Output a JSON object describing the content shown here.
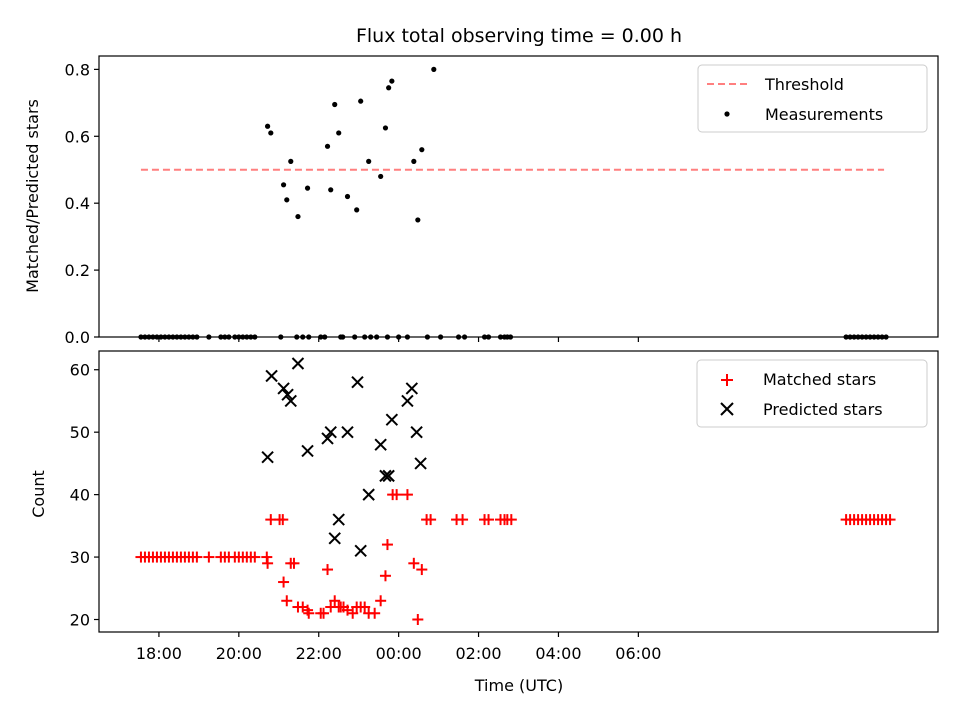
{
  "chart_data": [
    {
      "type": "scatter",
      "title": "Flux total observing time = 0.00 h",
      "xlabel": "",
      "ylabel": "Matched/Predicted stars",
      "xlim": [
        -1.5,
        19.5
      ],
      "ylim": [
        0,
        0.84
      ],
      "x_ticks_hours": [
        0,
        2,
        4,
        6,
        8,
        10,
        12
      ],
      "y_ticks": [
        "0.0",
        "0.2",
        "0.4",
        "0.6",
        "0.8"
      ],
      "y_tick_values": [
        0,
        0.2,
        0.4,
        0.6,
        0.8
      ],
      "threshold": {
        "name": "Threshold",
        "value": 0.5,
        "x_range": [
          -0.45,
          18.15
        ],
        "color": "#ff7f7f"
      },
      "legend": [
        "Threshold",
        "Measurements"
      ],
      "series": [
        {
          "name": "Measurements",
          "color": "#000000",
          "points": [
            [
              -0.45,
              0
            ],
            [
              -0.35,
              0
            ],
            [
              -0.25,
              0
            ],
            [
              -0.15,
              0
            ],
            [
              -0.05,
              0
            ],
            [
              0.05,
              0
            ],
            [
              0.15,
              0
            ],
            [
              0.25,
              0
            ],
            [
              0.35,
              0
            ],
            [
              0.45,
              0
            ],
            [
              0.55,
              0
            ],
            [
              0.65,
              0
            ],
            [
              0.75,
              0
            ],
            [
              0.85,
              0
            ],
            [
              0.95,
              0
            ],
            [
              1.25,
              0
            ],
            [
              1.55,
              0
            ],
            [
              1.65,
              0
            ],
            [
              1.75,
              0
            ],
            [
              1.9,
              0
            ],
            [
              2.0,
              0
            ],
            [
              2.1,
              0
            ],
            [
              2.2,
              0
            ],
            [
              2.3,
              0
            ],
            [
              2.4,
              0
            ],
            [
              2.72,
              0.63
            ],
            [
              2.8,
              0.61
            ],
            [
              3.05,
              0
            ],
            [
              3.12,
              0.455
            ],
            [
              3.2,
              0.41
            ],
            [
              3.3,
              0.525
            ],
            [
              3.45,
              0
            ],
            [
              3.48,
              0.36
            ],
            [
              3.6,
              0
            ],
            [
              3.72,
              0.445
            ],
            [
              3.75,
              0
            ],
            [
              4.05,
              0
            ],
            [
              4.15,
              0
            ],
            [
              4.22,
              0.57
            ],
            [
              4.3,
              0.44
            ],
            [
              4.4,
              0.695
            ],
            [
              4.5,
              0.61
            ],
            [
              4.55,
              0
            ],
            [
              4.6,
              0
            ],
            [
              4.72,
              0.42
            ],
            [
              4.9,
              0
            ],
            [
              4.95,
              0.38
            ],
            [
              5.05,
              0.705
            ],
            [
              5.15,
              0
            ],
            [
              5.25,
              0.525
            ],
            [
              5.3,
              0
            ],
            [
              5.45,
              0
            ],
            [
              5.55,
              0.48
            ],
            [
              5.67,
              0.625
            ],
            [
              5.72,
              0
            ],
            [
              5.75,
              0.745
            ],
            [
              5.83,
              0.765
            ],
            [
              6.0,
              0
            ],
            [
              6.22,
              0
            ],
            [
              6.38,
              0.525
            ],
            [
              6.48,
              0.35
            ],
            [
              6.58,
              0.56
            ],
            [
              6.72,
              0
            ],
            [
              6.88,
              0.8
            ],
            [
              7.05,
              0
            ],
            [
              7.5,
              0
            ],
            [
              7.65,
              0
            ],
            [
              8.15,
              0
            ],
            [
              8.25,
              0
            ],
            [
              8.55,
              0
            ],
            [
              8.65,
              0
            ],
            [
              8.72,
              0
            ],
            [
              8.8,
              0
            ],
            [
              17.2,
              0
            ],
            [
              17.3,
              0
            ],
            [
              17.4,
              0
            ],
            [
              17.5,
              0
            ],
            [
              17.6,
              0
            ],
            [
              17.7,
              0
            ],
            [
              17.8,
              0
            ],
            [
              17.9,
              0
            ],
            [
              18.0,
              0
            ],
            [
              18.1,
              0
            ],
            [
              18.2,
              0
            ]
          ]
        }
      ]
    },
    {
      "type": "scatter",
      "title": "",
      "xlabel": "Time (UTC)",
      "ylabel": "Count",
      "xlim": [
        -1.5,
        19.5
      ],
      "ylim": [
        18,
        63
      ],
      "x_ticks_hours": [
        0,
        2,
        4,
        6,
        8,
        10,
        12
      ],
      "x_ticks": [
        "18:00",
        "20:00",
        "22:00",
        "00:00",
        "02:00",
        "04:00",
        "06:00"
      ],
      "y_ticks": [
        "20",
        "30",
        "40",
        "50",
        "60"
      ],
      "y_tick_values": [
        20,
        30,
        40,
        50,
        60
      ],
      "legend": [
        "Matched stars",
        "Predicted stars"
      ],
      "series": [
        {
          "name": "Matched stars",
          "marker": "plus",
          "color": "#ff0000",
          "points": [
            [
              -0.45,
              30
            ],
            [
              -0.35,
              30
            ],
            [
              -0.25,
              30
            ],
            [
              -0.15,
              30
            ],
            [
              -0.05,
              30
            ],
            [
              0.05,
              30
            ],
            [
              0.15,
              30
            ],
            [
              0.25,
              30
            ],
            [
              0.35,
              30
            ],
            [
              0.45,
              30
            ],
            [
              0.55,
              30
            ],
            [
              0.65,
              30
            ],
            [
              0.75,
              30
            ],
            [
              0.85,
              30
            ],
            [
              0.95,
              30
            ],
            [
              1.25,
              30
            ],
            [
              1.55,
              30
            ],
            [
              1.65,
              30
            ],
            [
              1.75,
              30
            ],
            [
              1.9,
              30
            ],
            [
              2.0,
              30
            ],
            [
              2.1,
              30
            ],
            [
              2.2,
              30
            ],
            [
              2.3,
              30
            ],
            [
              2.4,
              30
            ],
            [
              2.7,
              30
            ],
            [
              2.72,
              29
            ],
            [
              2.8,
              36
            ],
            [
              3.02,
              36
            ],
            [
              3.1,
              36
            ],
            [
              3.12,
              26
            ],
            [
              3.2,
              23
            ],
            [
              3.3,
              29
            ],
            [
              3.38,
              29
            ],
            [
              3.48,
              22
            ],
            [
              3.6,
              22
            ],
            [
              3.72,
              21.5
            ],
            [
              3.75,
              21
            ],
            [
              4.05,
              21
            ],
            [
              4.12,
              21
            ],
            [
              4.22,
              28
            ],
            [
              4.3,
              22
            ],
            [
              4.4,
              23
            ],
            [
              4.5,
              22
            ],
            [
              4.55,
              22
            ],
            [
              4.62,
              22
            ],
            [
              4.72,
              21.5
            ],
            [
              4.85,
              21
            ],
            [
              4.95,
              22
            ],
            [
              5.05,
              22
            ],
            [
              5.15,
              22
            ],
            [
              5.25,
              21
            ],
            [
              5.4,
              21
            ],
            [
              5.55,
              23
            ],
            [
              5.67,
              27
            ],
            [
              5.72,
              32
            ],
            [
              5.85,
              40
            ],
            [
              5.95,
              40
            ],
            [
              6.22,
              40
            ],
            [
              6.38,
              29
            ],
            [
              6.48,
              20
            ],
            [
              6.58,
              28
            ],
            [
              6.7,
              36
            ],
            [
              6.8,
              36
            ],
            [
              7.45,
              36
            ],
            [
              7.6,
              36
            ],
            [
              8.15,
              36
            ],
            [
              8.25,
              36
            ],
            [
              8.55,
              36
            ],
            [
              8.65,
              36
            ],
            [
              8.72,
              36
            ],
            [
              8.82,
              36
            ],
            [
              17.2,
              36
            ],
            [
              17.3,
              36
            ],
            [
              17.4,
              36
            ],
            [
              17.5,
              36
            ],
            [
              17.6,
              36
            ],
            [
              17.7,
              36
            ],
            [
              17.8,
              36
            ],
            [
              17.9,
              36
            ],
            [
              18.0,
              36
            ],
            [
              18.1,
              36
            ],
            [
              18.2,
              36
            ],
            [
              18.3,
              36
            ]
          ]
        },
        {
          "name": "Predicted stars",
          "marker": "x",
          "color": "#000000",
          "points": [
            [
              2.72,
              46
            ],
            [
              2.82,
              59
            ],
            [
              3.12,
              57
            ],
            [
              3.22,
              56
            ],
            [
              3.3,
              55
            ],
            [
              3.48,
              61
            ],
            [
              3.72,
              47
            ],
            [
              4.22,
              49
            ],
            [
              4.3,
              50
            ],
            [
              4.4,
              33
            ],
            [
              4.5,
              36
            ],
            [
              4.72,
              50
            ],
            [
              4.97,
              58
            ],
            [
              5.05,
              31
            ],
            [
              5.25,
              40
            ],
            [
              5.55,
              48
            ],
            [
              5.67,
              43
            ],
            [
              5.75,
              43
            ],
            [
              5.83,
              52
            ],
            [
              6.22,
              55
            ],
            [
              6.33,
              57
            ],
            [
              6.45,
              50
            ],
            [
              6.55,
              45
            ]
          ]
        }
      ]
    }
  ]
}
